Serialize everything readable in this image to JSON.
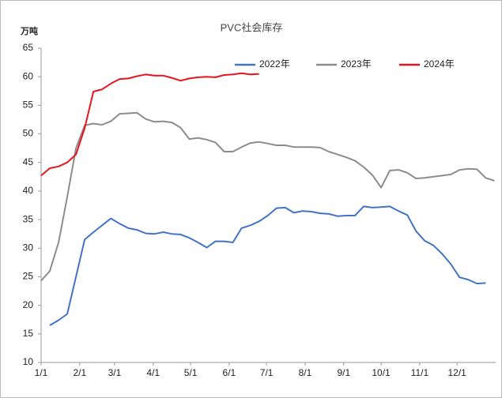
{
  "chart_data": {
    "type": "line",
    "title": "PVC社会库存",
    "y_label": "万吨",
    "x": [
      0,
      7,
      14,
      21,
      28,
      35,
      42,
      49,
      56,
      63,
      70,
      77,
      84,
      91,
      98,
      105,
      112,
      119,
      126,
      133,
      140,
      147,
      154,
      161,
      168,
      175,
      182,
      189,
      196,
      203,
      210,
      217,
      224,
      231,
      238,
      245,
      252,
      259,
      266,
      273,
      280,
      287,
      294,
      301,
      308,
      315,
      322,
      329,
      336,
      343,
      350,
      357,
      364
    ],
    "xlim": [
      0,
      365
    ],
    "xticks": [
      {
        "value": 0,
        "label": "1/1"
      },
      {
        "value": 31,
        "label": "2/1"
      },
      {
        "value": 59,
        "label": "3/1"
      },
      {
        "value": 90,
        "label": "4/1"
      },
      {
        "value": 120,
        "label": "5/1"
      },
      {
        "value": 151,
        "label": "6/1"
      },
      {
        "value": 181,
        "label": "7/1"
      },
      {
        "value": 212,
        "label": "8/1"
      },
      {
        "value": 243,
        "label": "9/1"
      },
      {
        "value": 273,
        "label": "10/1"
      },
      {
        "value": 304,
        "label": "11/1"
      },
      {
        "value": 334,
        "label": "12/1"
      }
    ],
    "ylim": [
      10,
      65
    ],
    "yticks": [
      10,
      15,
      20,
      25,
      30,
      35,
      40,
      45,
      50,
      55,
      60,
      65
    ],
    "grid": false,
    "legend": "top-right",
    "series": [
      {
        "name": "2022年",
        "color": "#4472c4",
        "values": [
          null,
          16.5,
          17.4,
          18.5,
          25,
          31.5,
          32.8,
          34,
          35.2,
          34.3,
          33.5,
          33.2,
          32.6,
          32.5,
          32.8,
          32.5,
          32.4,
          31.8,
          31,
          30.1,
          31.2,
          31.2,
          31,
          33.5,
          34,
          34.7,
          35.7,
          37,
          37.1,
          36.2,
          36.5,
          36.4,
          36.1,
          36,
          35.6,
          35.7,
          35.7,
          37.3,
          37.1,
          37.2,
          37.3,
          36.5,
          35.8,
          33,
          31.3,
          30.5,
          29,
          27.2,
          24.9,
          24.5,
          23.8,
          23.9,
          null
        ]
      },
      {
        "name": "2023年",
        "color": "#8c8c8c",
        "values": [
          24.3,
          26,
          31,
          39,
          47.5,
          51.5,
          51.8,
          51.6,
          52.2,
          53.5,
          53.6,
          53.7,
          52.6,
          52.1,
          52.2,
          52,
          51.1,
          49.1,
          49.3,
          49,
          48.5,
          46.9,
          46.9,
          47.7,
          48.4,
          48.6,
          48.3,
          48,
          48,
          47.7,
          47.7,
          47.7,
          47.6,
          46.9,
          46.4,
          45.9,
          45.3,
          44.2,
          42.8,
          40.6,
          43.6,
          43.7,
          43.2,
          42.2,
          42.3,
          42.5,
          42.7,
          42.9,
          43.7,
          43.9,
          43.8,
          42.3,
          41.8
        ]
      },
      {
        "name": "2024年",
        "color": "#e8141c",
        "values": [
          42.7,
          44,
          44.3,
          45,
          46.4,
          51,
          57.4,
          57.8,
          58.8,
          59.6,
          59.7,
          60.1,
          60.4,
          60.2,
          60.2,
          59.8,
          59.3,
          59.7,
          59.9,
          60,
          59.9,
          60.3,
          60.4,
          60.6,
          60.4,
          60.5,
          null,
          null,
          null,
          null,
          null,
          null,
          null,
          null,
          null,
          null,
          null,
          null,
          null,
          null,
          null,
          null,
          null,
          null,
          null,
          null,
          null,
          null,
          null,
          null,
          null,
          null,
          null
        ]
      }
    ]
  }
}
